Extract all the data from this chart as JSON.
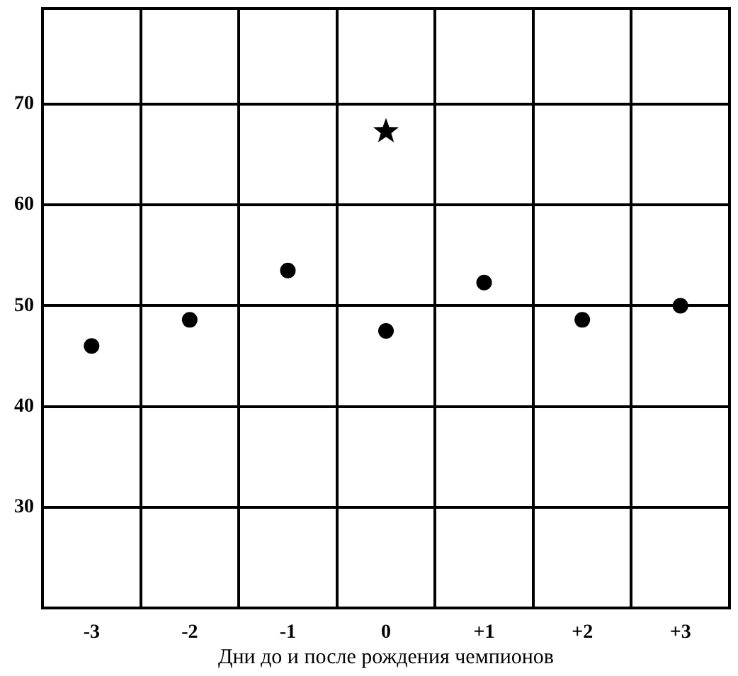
{
  "chart_data": {
    "type": "scatter",
    "xlabel": "Дни до и после рождения чемпионов",
    "categories": [
      "-3",
      "-2",
      "-1",
      "0",
      "+1",
      "+2",
      "+3"
    ],
    "series": [
      {
        "color": "#000000",
        "marker": "circle",
        "values": [
          46,
          48.6,
          53.5,
          47.5,
          52.3,
          48.6,
          50
        ]
      },
      {
        "color": "#000000",
        "marker": "star",
        "x": [
          "0"
        ],
        "values": [
          67.3
        ]
      }
    ],
    "ylim": [
      20,
      79.5
    ],
    "yticks": [
      30,
      40,
      50,
      60,
      70
    ],
    "grid": true,
    "legend": false
  }
}
